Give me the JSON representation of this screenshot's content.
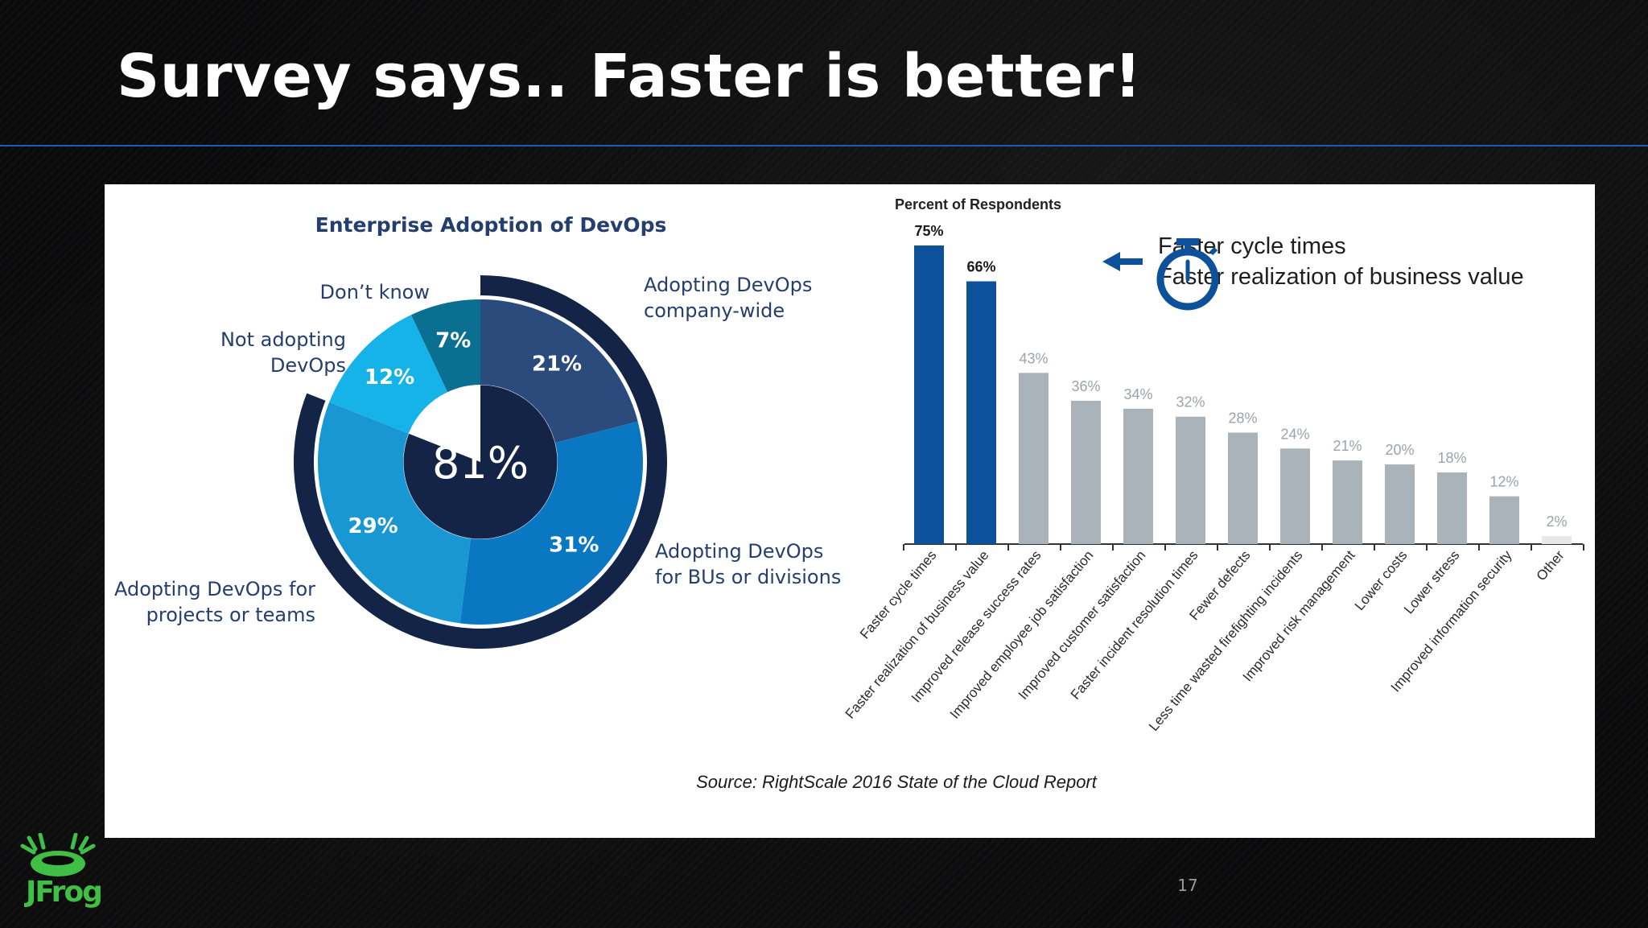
{
  "slide": {
    "title": "Survey says.. Faster is better!",
    "page_number": "17",
    "logo_text": "JFrog"
  },
  "source_note": "Source: RightScale 2016 State of the Cloud Report",
  "callout": {
    "line1": "Faster cycle times",
    "line2": "Faster realization of business value"
  },
  "colors": {
    "highlight_bar": "#0c5199",
    "regular_bar": "#aab3ba",
    "faint_bar": "#e8e8e8",
    "donut_dark": "#132447",
    "donut_navy": "#2a4b7c",
    "donut_blue": "#0a77c3",
    "donut_mid": "#1997d3",
    "donut_light": "#16b3e8",
    "donut_teal": "#0b6f91",
    "callout_icon": "#0c5199"
  },
  "chart_data": [
    {
      "type": "pie",
      "title": "Enterprise Adoption of DevOps",
      "center_label": "81%",
      "slices": [
        {
          "name": "Adopting DevOps company-wide",
          "label_lines": [
            "Adopting DevOps",
            "company-wide"
          ],
          "value": 21,
          "label": "21%",
          "color": "#2a4b7c"
        },
        {
          "name": "Adopting DevOps for BUs or divisions",
          "label_lines": [
            "Adopting DevOps",
            "for BUs or divisions"
          ],
          "value": 31,
          "label": "31%",
          "color": "#0a77c3"
        },
        {
          "name": "Adopting DevOps for projects or teams",
          "label_lines": [
            "Adopting DevOps for",
            "projects or teams"
          ],
          "value": 29,
          "label": "29%",
          "color": "#1997d3"
        },
        {
          "name": "Not adopting DevOps",
          "label_lines": [
            "Not adopting",
            "DevOps"
          ],
          "value": 12,
          "label": "12%",
          "color": "#16b3e8"
        },
        {
          "name": "Don't know",
          "label_lines": [
            "Don’t know"
          ],
          "value": 7,
          "label": "7%",
          "color": "#0b6f91"
        }
      ],
      "outer_ring_value": 81
    },
    {
      "type": "bar",
      "title": "Percent of Respondents",
      "categories": [
        "Faster cycle times",
        "Faster realization of business value",
        "Improved release success rates",
        "Improved employee job satisfaction",
        "Improved customer satisfaction",
        "Faster incident resolution times",
        "Fewer defects",
        "Less time wasted firefighting incidents",
        "Improved risk management",
        "Lower costs",
        "Lower stress",
        "Improved information security",
        "Other"
      ],
      "values": [
        75,
        66,
        43,
        36,
        34,
        32,
        28,
        24,
        21,
        20,
        18,
        12,
        2
      ],
      "value_labels": [
        "75%",
        "66%",
        "43%",
        "36%",
        "34%",
        "32%",
        "28%",
        "24%",
        "21%",
        "20%",
        "18%",
        "12%",
        "2%"
      ],
      "highlighted": [
        true,
        true,
        false,
        false,
        false,
        false,
        false,
        false,
        false,
        false,
        false,
        false,
        false
      ],
      "ylim": [
        0,
        75
      ],
      "grid": false
    }
  ]
}
